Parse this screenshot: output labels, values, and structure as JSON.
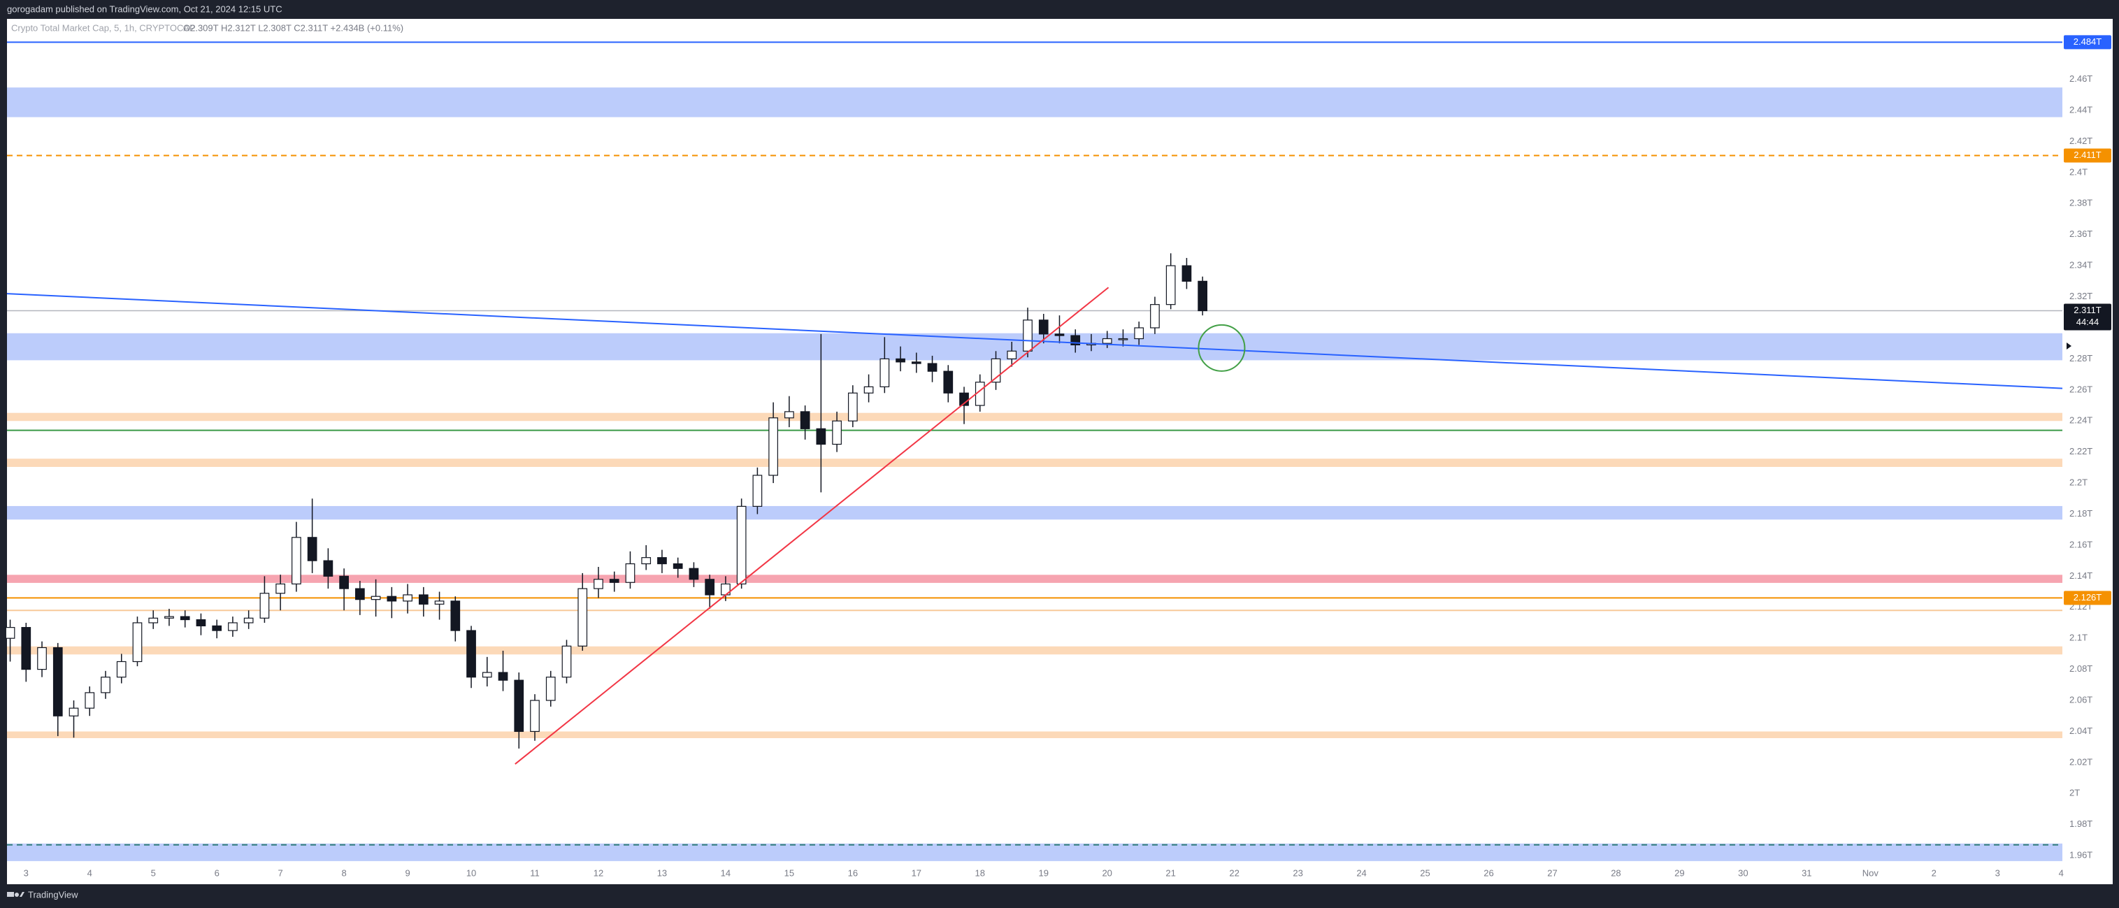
{
  "chart_data": {
    "type": "candlestick",
    "publisher": "gorogadam published on TradingView.com, Oct 21, 2024 12:15 UTC",
    "title": "Crypto Total Market Cap, 5, 1h, CRYPTOCAP",
    "ohlc_legend": "O2.309T H2.312T L2.308T C2.311T +2.434B (+0.11%)",
    "brand": "TradingView",
    "xlim": [
      2.7,
      35.02
    ],
    "ylim": [
      1.956,
      2.499
    ],
    "yticks": [
      {
        "value": 1.96,
        "label": "1.96T"
      },
      {
        "value": 1.98,
        "label": "1.98T"
      },
      {
        "value": 2.0,
        "label": "2T"
      },
      {
        "value": 2.02,
        "label": "2.02T"
      },
      {
        "value": 2.04,
        "label": "2.04T"
      },
      {
        "value": 2.06,
        "label": "2.06T"
      },
      {
        "value": 2.08,
        "label": "2.08T"
      },
      {
        "value": 2.1,
        "label": "2.1T"
      },
      {
        "value": 2.12,
        "label": "2.12T"
      },
      {
        "value": 2.14,
        "label": "2.14T"
      },
      {
        "value": 2.16,
        "label": "2.16T"
      },
      {
        "value": 2.18,
        "label": "2.18T"
      },
      {
        "value": 2.2,
        "label": "2.2T"
      },
      {
        "value": 2.22,
        "label": "2.22T"
      },
      {
        "value": 2.24,
        "label": "2.24T"
      },
      {
        "value": 2.26,
        "label": "2.26T"
      },
      {
        "value": 2.28,
        "label": "2.28T"
      },
      {
        "value": 2.3,
        "label": "2.3T"
      },
      {
        "value": 2.32,
        "label": "2.32T"
      },
      {
        "value": 2.34,
        "label": "2.34T"
      },
      {
        "value": 2.36,
        "label": "2.36T"
      },
      {
        "value": 2.38,
        "label": "2.38T"
      },
      {
        "value": 2.4,
        "label": "2.4T"
      },
      {
        "value": 2.42,
        "label": "2.42T"
      },
      {
        "value": 2.44,
        "label": "2.44T"
      },
      {
        "value": 2.46,
        "label": "2.46T"
      }
    ],
    "xticks": [
      3,
      4,
      5,
      6,
      7,
      8,
      9,
      10,
      11,
      12,
      13,
      14,
      15,
      16,
      17,
      18,
      19,
      20,
      21,
      22,
      23,
      24,
      25,
      26,
      27,
      28,
      29,
      30,
      31,
      {
        "value": 32,
        "label": "Nov"
      },
      {
        "value": 33,
        "label": "2"
      },
      {
        "value": 34,
        "label": "3"
      },
      {
        "value": 35,
        "label": "4"
      }
    ],
    "x": [
      2.75,
      3,
      3.25,
      3.5,
      3.75,
      4,
      4.25,
      4.5,
      4.75,
      5,
      5.25,
      5.5,
      5.75,
      6,
      6.25,
      6.5,
      6.75,
      7,
      7.25,
      7.5,
      7.75,
      8,
      8.25,
      8.5,
      8.75,
      9,
      9.25,
      9.5,
      9.75,
      10,
      10.25,
      10.5,
      10.75,
      11,
      11.25,
      11.5,
      11.75,
      12,
      12.25,
      12.5,
      12.75,
      13,
      13.25,
      13.5,
      13.75,
      14,
      14.25,
      14.5,
      14.75,
      15,
      15.25,
      15.5,
      15.75,
      16,
      16.25,
      16.5,
      16.75,
      17,
      17.25,
      17.5,
      17.75,
      18,
      18.25,
      18.5,
      18.75,
      19,
      19.25,
      19.5,
      19.75,
      20,
      20.25,
      20.5,
      20.75,
      21,
      21.25,
      21.5
    ],
    "open": [
      2.1,
      2.107,
      2.08,
      2.094,
      2.05,
      2.055,
      2.065,
      2.075,
      2.085,
      2.11,
      2.113,
      2.114,
      2.112,
      2.108,
      2.105,
      2.11,
      2.113,
      2.129,
      2.135,
      2.165,
      2.15,
      2.14,
      2.132,
      2.125,
      2.127,
      2.124,
      2.128,
      2.122,
      2.124,
      2.105,
      2.075,
      2.078,
      2.073,
      2.04,
      2.06,
      2.075,
      2.095,
      2.132,
      2.138,
      2.136,
      2.148,
      2.152,
      2.148,
      2.145,
      2.138,
      2.128,
      2.135,
      2.185,
      2.205,
      2.242,
      2.246,
      2.235,
      2.225,
      2.24,
      2.258,
      2.262,
      2.28,
      2.278,
      2.277,
      2.272,
      2.258,
      2.25,
      2.265,
      2.28,
      2.285,
      2.305,
      2.296,
      2.295,
      2.289,
      2.29,
      2.293,
      2.293,
      2.3,
      2.315,
      2.34,
      2.33
    ],
    "high": [
      2.112,
      2.11,
      2.098,
      2.097,
      2.06,
      2.069,
      2.079,
      2.09,
      2.114,
      2.118,
      2.119,
      2.118,
      2.116,
      2.112,
      2.114,
      2.118,
      2.14,
      2.141,
      2.175,
      2.19,
      2.158,
      2.145,
      2.137,
      2.138,
      2.133,
      2.135,
      2.133,
      2.13,
      2.127,
      2.108,
      2.088,
      2.092,
      2.078,
      2.064,
      2.079,
      2.099,
      2.142,
      2.146,
      2.143,
      2.156,
      2.16,
      2.157,
      2.152,
      2.149,
      2.141,
      2.14,
      2.19,
      2.21,
      2.252,
      2.256,
      2.25,
      2.296,
      2.246,
      2.263,
      2.27,
      2.294,
      2.288,
      2.284,
      2.282,
      2.276,
      2.262,
      2.27,
      2.285,
      2.291,
      2.313,
      2.309,
      2.308,
      2.299,
      2.296,
      2.298,
      2.299,
      2.304,
      2.32,
      2.348,
      2.345,
      2.333
    ],
    "low": [
      2.085,
      2.072,
      2.075,
      2.037,
      2.036,
      2.05,
      2.061,
      2.071,
      2.082,
      2.106,
      2.108,
      2.107,
      2.102,
      2.1,
      2.101,
      2.106,
      2.11,
      2.118,
      2.13,
      2.142,
      2.132,
      2.118,
      2.115,
      2.114,
      2.113,
      2.116,
      2.114,
      2.112,
      2.098,
      2.068,
      2.069,
      2.066,
      2.029,
      2.034,
      2.056,
      2.071,
      2.092,
      2.126,
      2.13,
      2.132,
      2.144,
      2.142,
      2.139,
      2.133,
      2.119,
      2.124,
      2.132,
      2.18,
      2.2,
      2.236,
      2.228,
      2.194,
      2.22,
      2.236,
      2.252,
      2.258,
      2.272,
      2.271,
      2.265,
      2.252,
      2.238,
      2.246,
      2.26,
      2.275,
      2.281,
      2.29,
      2.29,
      2.284,
      2.285,
      2.287,
      2.288,
      2.289,
      2.296,
      2.312,
      2.325,
      2.308
    ],
    "close": [
      2.107,
      2.08,
      2.094,
      2.05,
      2.055,
      2.065,
      2.075,
      2.085,
      2.11,
      2.113,
      2.114,
      2.112,
      2.108,
      2.105,
      2.11,
      2.113,
      2.129,
      2.135,
      2.165,
      2.15,
      2.14,
      2.132,
      2.125,
      2.127,
      2.124,
      2.128,
      2.122,
      2.124,
      2.105,
      2.075,
      2.078,
      2.073,
      2.04,
      2.06,
      2.075,
      2.095,
      2.132,
      2.138,
      2.136,
      2.148,
      2.152,
      2.148,
      2.145,
      2.138,
      2.128,
      2.135,
      2.185,
      2.205,
      2.242,
      2.246,
      2.235,
      2.225,
      2.24,
      2.258,
      2.262,
      2.28,
      2.278,
      2.277,
      2.272,
      2.258,
      2.25,
      2.265,
      2.28,
      2.285,
      2.305,
      2.296,
      2.295,
      2.289,
      2.29,
      2.293,
      2.293,
      2.3,
      2.315,
      2.34,
      2.33,
      2.311
    ],
    "up_color": "#ffffff",
    "down_color": "#131722",
    "zones": [
      {
        "from": 2.4357,
        "to": 2.4548,
        "color": "#bcccfb"
      },
      {
        "from": 2.2791,
        "to": 2.2965,
        "color": "#bcccfb"
      },
      {
        "from": 2.24,
        "to": 2.2452,
        "color": "#fcd9b8"
      },
      {
        "from": 2.2104,
        "to": 2.2157,
        "color": "#fcd9b8"
      },
      {
        "from": 2.1765,
        "to": 2.1852,
        "color": "#bcccfb"
      },
      {
        "from": 2.1357,
        "to": 2.1409,
        "color": "#f6a4b0"
      },
      {
        "from": 2.0896,
        "to": 2.0948,
        "color": "#fcd9b8"
      },
      {
        "from": 2.0357,
        "to": 2.04,
        "color": "#fcd9b8"
      },
      {
        "from": 1.9565,
        "to": 1.9678,
        "color": "#bcccfb"
      }
    ],
    "hlines": [
      {
        "value": 2.484,
        "color": "#2962ff",
        "dash": false,
        "label": "2.484T"
      },
      {
        "value": 2.411,
        "color": "#f59100",
        "dash": true,
        "label": "2.411T"
      },
      {
        "value": 2.234,
        "color": "#3a9a48",
        "dash": false
      },
      {
        "value": 2.126,
        "color": "#f59100",
        "dash": false,
        "label": "2.126T"
      },
      {
        "value": 2.118,
        "color": "#f7c99a",
        "dash": false
      },
      {
        "value": 1.967,
        "color": "#2f7d7a",
        "dash": true
      }
    ],
    "last_price": {
      "value": 2.311,
      "label": "2.311T",
      "countdown": "44:44",
      "color": "#131722"
    },
    "trendlines": [
      {
        "x": [
          2.7,
          35.02
        ],
        "y": [
          2.322,
          2.261
        ],
        "color": "#2962ff"
      },
      {
        "x": [
          10.69,
          20.02
        ],
        "y": [
          2.019,
          2.326
        ],
        "color": "#f23645"
      }
    ],
    "circle": {
      "x": 21.8,
      "y": 2.287,
      "color": "#43a047"
    }
  }
}
